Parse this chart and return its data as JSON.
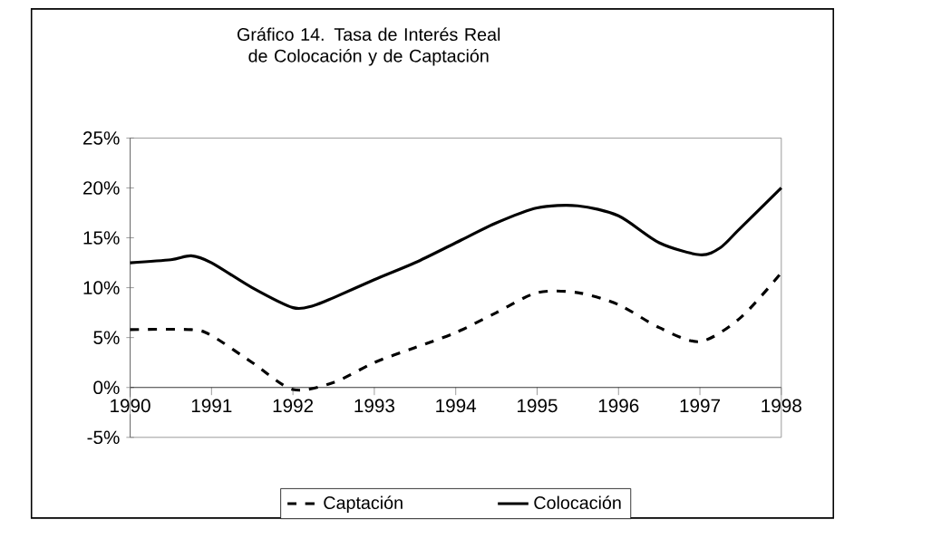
{
  "chart_data": {
    "type": "line",
    "title": "Gráfico 14. Tasa de Interés Real de Colocación y de Captación",
    "xlim": [
      1990,
      1998
    ],
    "xticks": [
      1990,
      1991,
      1992,
      1993,
      1994,
      1995,
      1996,
      1997,
      1998
    ],
    "ylim": [
      -5,
      25
    ],
    "yticks": [
      {
        "value": -5,
        "label": "-5%"
      },
      {
        "value": 0,
        "label": "0%"
      },
      {
        "value": 5,
        "label": "5%"
      },
      {
        "value": 10,
        "label": "10%"
      },
      {
        "value": 15,
        "label": "15%"
      },
      {
        "value": 20,
        "label": "20%"
      },
      {
        "value": 25,
        "label": "25%"
      }
    ],
    "grid": false,
    "legend": "bottom",
    "series": [
      {
        "name": "Captación",
        "color": "#000000",
        "line_style": "dashed",
        "x": [
          1990,
          1990.75,
          1991,
          1991.5,
          1992,
          1992.5,
          1993,
          1993.5,
          1994,
          1994.5,
          1995,
          1995.5,
          1996,
          1996.5,
          1997,
          1997.5,
          1998
        ],
        "values": [
          5.8,
          5.8,
          5.2,
          2.5,
          -0.2,
          0.5,
          2.5,
          4,
          5.5,
          7.5,
          9.5,
          9.5,
          8.3,
          6,
          4.6,
          7,
          11.5
        ]
      },
      {
        "name": "Colocación",
        "color": "#000000",
        "line_style": "solid",
        "x": [
          1990,
          1990.5,
          1990.75,
          1991,
          1991.5,
          1992,
          1992.25,
          1992.5,
          1993,
          1993.5,
          1994,
          1994.5,
          1995,
          1995.5,
          1996,
          1996.5,
          1997,
          1997.25,
          1997.5,
          1998
        ],
        "values": [
          12.5,
          12.8,
          13.2,
          12.5,
          10,
          8,
          8.2,
          9,
          10.8,
          12.5,
          14.5,
          16.5,
          18,
          18.2,
          17.2,
          14.5,
          13.3,
          14,
          16,
          20
        ]
      }
    ]
  }
}
